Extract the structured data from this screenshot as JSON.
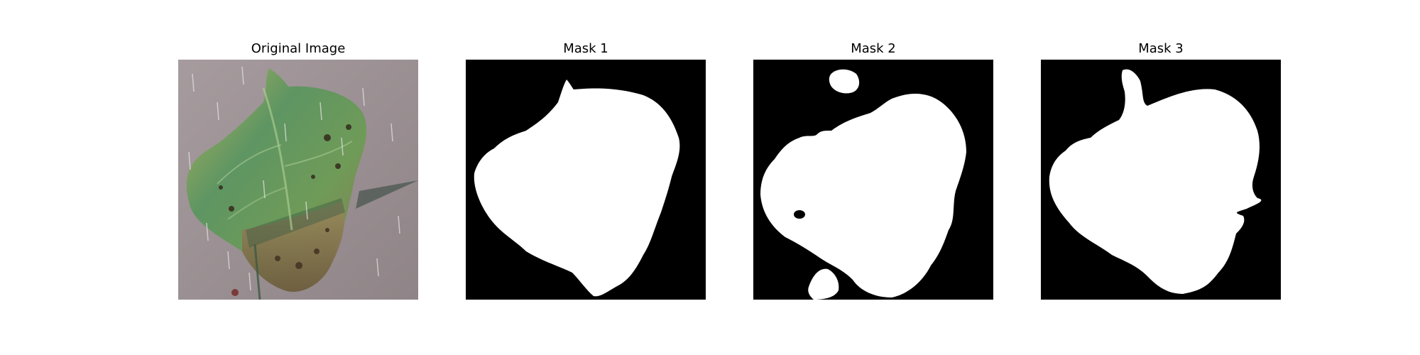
{
  "figure": {
    "panels": [
      {
        "title": "Original Image"
      },
      {
        "title": "Mask 1"
      },
      {
        "title": "Mask 2"
      },
      {
        "title": "Mask 3"
      }
    ],
    "colors": {
      "background": "#ffffff",
      "mask_background": "#000000",
      "mask_foreground": "#ffffff",
      "ground": "#9a8f92",
      "leaf_green": "#5f9460",
      "leaf_yellow": "#b8b85a",
      "leaf_brown": "#7a6a4a"
    }
  }
}
